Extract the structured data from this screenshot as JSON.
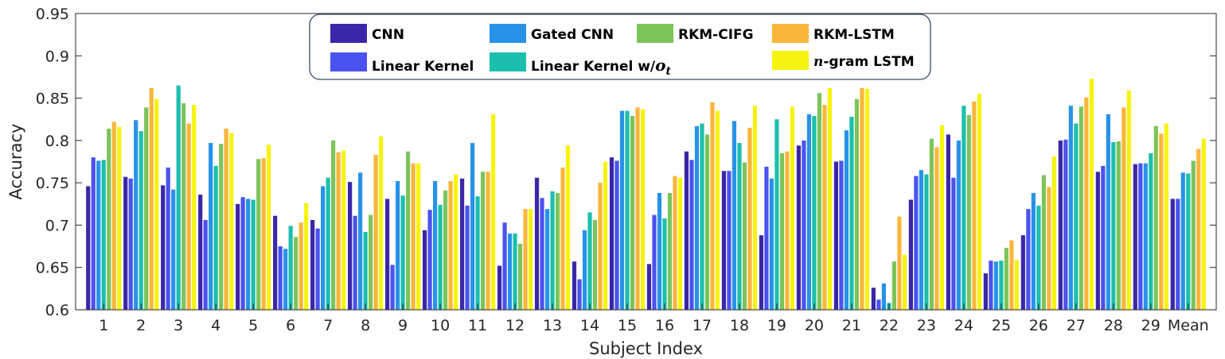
{
  "chart_data": {
    "type": "bar",
    "title": "",
    "xlabel": "Subject Index",
    "ylabel": "Accuracy",
    "ylim": [
      0.6,
      0.95
    ],
    "yticks": [
      "0.6",
      "0.65",
      "0.7",
      "0.75",
      "0.8",
      "0.85",
      "0.9",
      "0.95"
    ],
    "categories": [
      "1",
      "2",
      "3",
      "4",
      "5",
      "6",
      "7",
      "8",
      "9",
      "10",
      "11",
      "12",
      "13",
      "14",
      "15",
      "16",
      "17",
      "18",
      "19",
      "20",
      "21",
      "22",
      "23",
      "24",
      "25",
      "26",
      "27",
      "28",
      "29",
      "Mean"
    ],
    "legend_position": "top-center",
    "series": [
      {
        "name": "CNN",
        "color": "#3a27a8",
        "values": [
          0.746,
          0.757,
          0.747,
          0.736,
          0.725,
          0.711,
          0.706,
          0.751,
          0.731,
          0.694,
          0.755,
          0.652,
          0.756,
          0.657,
          0.78,
          0.654,
          0.787,
          0.764,
          0.688,
          0.794,
          0.775,
          0.626,
          0.73,
          0.807,
          0.643,
          0.688,
          0.8,
          0.763,
          0.772,
          0.731
        ]
      },
      {
        "name": "Linear Kernel",
        "color": "#4a52f0",
        "values": [
          0.78,
          0.755,
          0.768,
          0.706,
          0.733,
          0.675,
          0.696,
          0.711,
          0.653,
          0.718,
          0.723,
          0.703,
          0.732,
          0.636,
          0.776,
          0.712,
          0.777,
          0.764,
          0.769,
          0.8,
          0.776,
          0.612,
          0.758,
          0.756,
          0.658,
          0.719,
          0.801,
          0.77,
          0.773,
          0.731
        ]
      },
      {
        "name": "Gated CNN",
        "color": "#2892e8",
        "values": [
          0.776,
          0.824,
          0.742,
          0.797,
          0.731,
          0.672,
          0.746,
          0.762,
          0.752,
          0.752,
          0.797,
          0.69,
          0.719,
          0.694,
          0.835,
          0.738,
          0.817,
          0.823,
          0.755,
          0.831,
          0.812,
          0.631,
          0.765,
          0.8,
          0.657,
          0.738,
          0.841,
          0.831,
          0.773,
          0.762
        ]
      },
      {
        "name": "Linear Kernel w/o_t",
        "color": "#1cbfad",
        "values": [
          0.777,
          0.811,
          0.865,
          0.77,
          0.73,
          0.699,
          0.756,
          0.692,
          0.735,
          0.724,
          0.734,
          0.69,
          0.74,
          0.715,
          0.835,
          0.708,
          0.82,
          0.797,
          0.825,
          0.829,
          0.828,
          0.608,
          0.76,
          0.841,
          0.658,
          0.723,
          0.82,
          0.798,
          0.785,
          0.761
        ]
      },
      {
        "name": "RKM-CIFG",
        "color": "#7cc45a",
        "values": [
          0.814,
          0.839,
          0.844,
          0.796,
          0.778,
          0.686,
          0.8,
          0.712,
          0.787,
          0.741,
          0.763,
          0.678,
          0.738,
          0.706,
          0.829,
          0.738,
          0.807,
          0.774,
          0.785,
          0.856,
          0.849,
          0.657,
          0.802,
          0.83,
          0.673,
          0.759,
          0.84,
          0.799,
          0.817,
          0.776
        ]
      },
      {
        "name": "RKM-LSTM",
        "color": "#f9b63a",
        "values": [
          0.822,
          0.862,
          0.82,
          0.814,
          0.779,
          0.703,
          0.786,
          0.783,
          0.773,
          0.752,
          0.763,
          0.719,
          0.768,
          0.75,
          0.839,
          0.758,
          0.845,
          0.815,
          0.787,
          0.842,
          0.862,
          0.71,
          0.792,
          0.846,
          0.682,
          0.745,
          0.851,
          0.839,
          0.808,
          0.79
        ]
      },
      {
        "name": "n-gram LSTM",
        "color": "#f6f310",
        "values": [
          0.816,
          0.849,
          0.842,
          0.809,
          0.795,
          0.726,
          0.788,
          0.805,
          0.773,
          0.76,
          0.831,
          0.719,
          0.794,
          0.775,
          0.837,
          0.756,
          0.835,
          0.841,
          0.84,
          0.862,
          0.861,
          0.665,
          0.818,
          0.855,
          0.659,
          0.781,
          0.873,
          0.859,
          0.82,
          0.802
        ]
      }
    ]
  },
  "legend": {
    "items": [
      {
        "label": "CNN"
      },
      {
        "label": "Gated CNN"
      },
      {
        "label": "RKM-CIFG"
      },
      {
        "label": "RKM-LSTM"
      },
      {
        "label": "Linear Kernel"
      },
      {
        "label": "Linear Kernel w/",
        "subscript_main": "o",
        "subscript_sub": "t"
      },
      {
        "label_italic": "n",
        "label": "-gram LSTM"
      }
    ]
  }
}
